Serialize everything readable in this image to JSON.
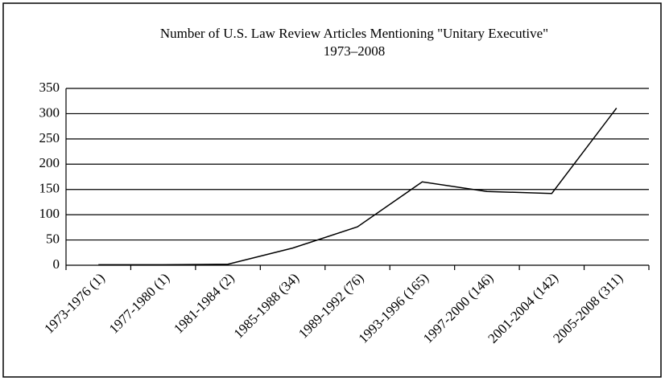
{
  "chart_data": {
    "type": "line",
    "title": "Number of U.S. Law Review Articles Mentioning \"Unitary Executive\"",
    "subtitle": "1973–2008",
    "categories": [
      "1973-1976 (1)",
      "1977-1980 (1)",
      "1981-1984 (2)",
      "1985-1988 (34)",
      "1989-1992 (76)",
      "1993-1996 (165)",
      "1997-2000 (146)",
      "2001-2004 (142)",
      "2005-2008 (311)"
    ],
    "values": [
      1,
      1,
      2,
      34,
      76,
      165,
      146,
      142,
      311
    ],
    "color": "#000000",
    "ylim": [
      0,
      350
    ],
    "yticks": [
      0,
      50,
      100,
      150,
      200,
      250,
      300,
      350
    ],
    "grid": true
  }
}
